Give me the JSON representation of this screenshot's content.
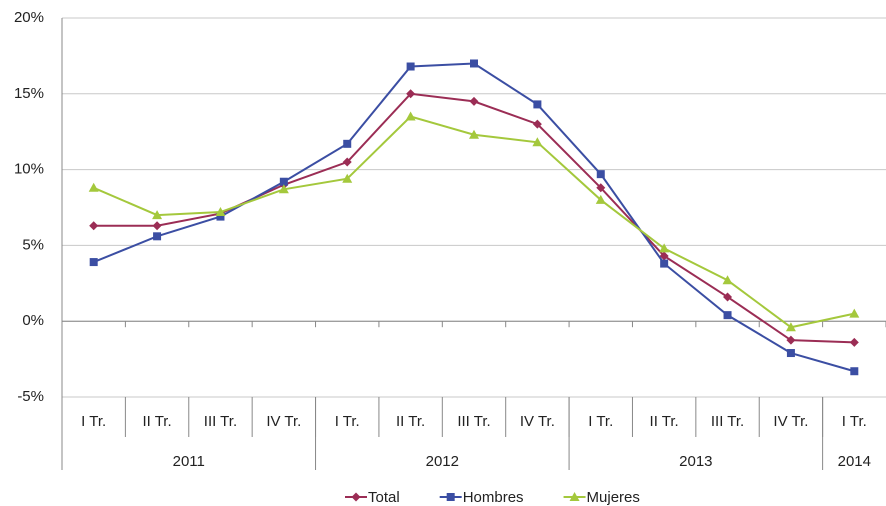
{
  "chart_data": {
    "type": "line",
    "categories": [
      "I Tr.",
      "II Tr.",
      "III Tr.",
      "IV Tr.",
      "I Tr.",
      "II Tr.",
      "III Tr.",
      "IV Tr.",
      "I Tr.",
      "II Tr.",
      "III Tr.",
      "IV Tr.",
      "I Tr."
    ],
    "groups": [
      {
        "label": "2011",
        "count": 4
      },
      {
        "label": "2012",
        "count": 4
      },
      {
        "label": "2013",
        "count": 4
      },
      {
        "label": "2014",
        "count": 1
      }
    ],
    "series": [
      {
        "name": "Total",
        "color": "#9b2d55",
        "marker": "diamond",
        "values": [
          6.3,
          6.3,
          7.1,
          9.0,
          10.5,
          15.0,
          14.5,
          13.0,
          8.8,
          4.3,
          1.6,
          -1.25,
          -1.4
        ]
      },
      {
        "name": "Hombres",
        "color": "#3b4ea3",
        "marker": "square",
        "values": [
          3.9,
          5.6,
          6.9,
          9.2,
          11.7,
          16.8,
          17.0,
          14.3,
          9.7,
          3.8,
          0.4,
          -2.1,
          -3.3
        ]
      },
      {
        "name": "Mujeres",
        "color": "#a4c83c",
        "marker": "triangle",
        "values": [
          8.8,
          7.0,
          7.2,
          8.7,
          9.4,
          13.5,
          12.3,
          11.8,
          8.0,
          4.8,
          2.7,
          -0.4,
          0.5
        ]
      }
    ],
    "ylim": [
      -5,
      20
    ],
    "yticks": [
      {
        "value": -5,
        "label": "-5%"
      },
      {
        "value": 0,
        "label": "0%"
      },
      {
        "value": 5,
        "label": "5%"
      },
      {
        "value": 10,
        "label": "10%"
      },
      {
        "value": 15,
        "label": "15%"
      },
      {
        "value": 20,
        "label": "20%"
      }
    ],
    "grid": true,
    "legend": "bottom"
  }
}
